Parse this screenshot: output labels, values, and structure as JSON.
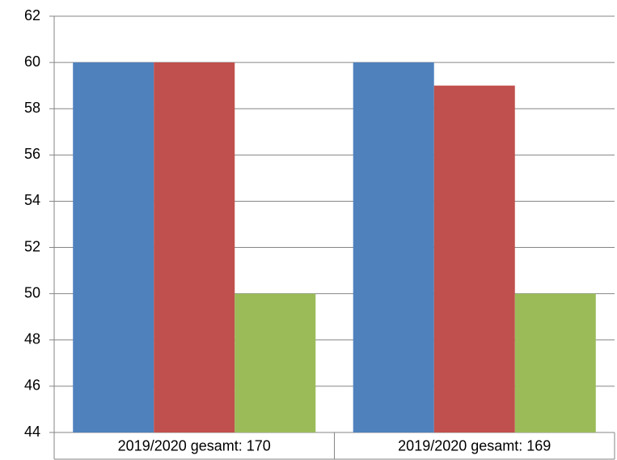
{
  "chart_data": {
    "type": "bar",
    "categories": [
      "2019/2020 gesamt: 170",
      "2019/2020 gesamt: 169"
    ],
    "series": [
      {
        "color": "#4f81bd",
        "values": [
          60,
          60
        ]
      },
      {
        "color": "#c0504d",
        "values": [
          60,
          59
        ]
      },
      {
        "color": "#9bbb59",
        "values": [
          50,
          50
        ]
      }
    ],
    "ylim": [
      44,
      62
    ],
    "yticks": [
      44,
      46,
      48,
      50,
      52,
      54,
      56,
      58,
      60,
      62
    ],
    "grid": true
  }
}
